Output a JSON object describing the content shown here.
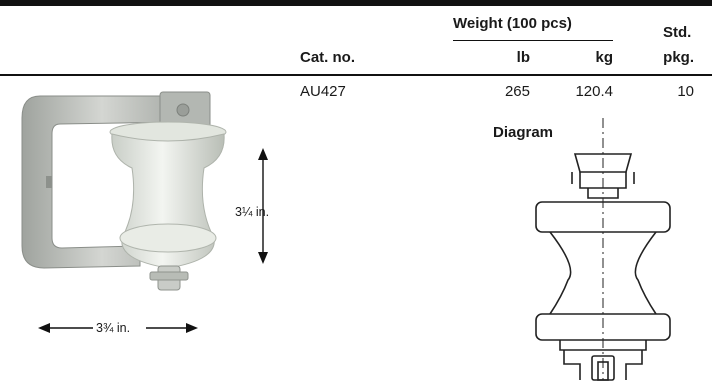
{
  "table": {
    "header": {
      "weight_group": "Weight (100 pcs)",
      "cat_no": "Cat. no.",
      "lb": "lb",
      "kg": "kg",
      "std_line1": "Std.",
      "std_line2": "pkg."
    },
    "row": {
      "cat_no": "AU427",
      "lb": "265",
      "kg": "120.4",
      "std_pkg": "10"
    }
  },
  "photo": {
    "height_dim": "3¼ in.",
    "width_dim": "3¾ in."
  },
  "diagram": {
    "label": "Diagram"
  },
  "colors": {
    "rule": "#111111",
    "porcelain": "#e8ece6",
    "bracket": "#bfc2bd",
    "line": "#222222"
  }
}
